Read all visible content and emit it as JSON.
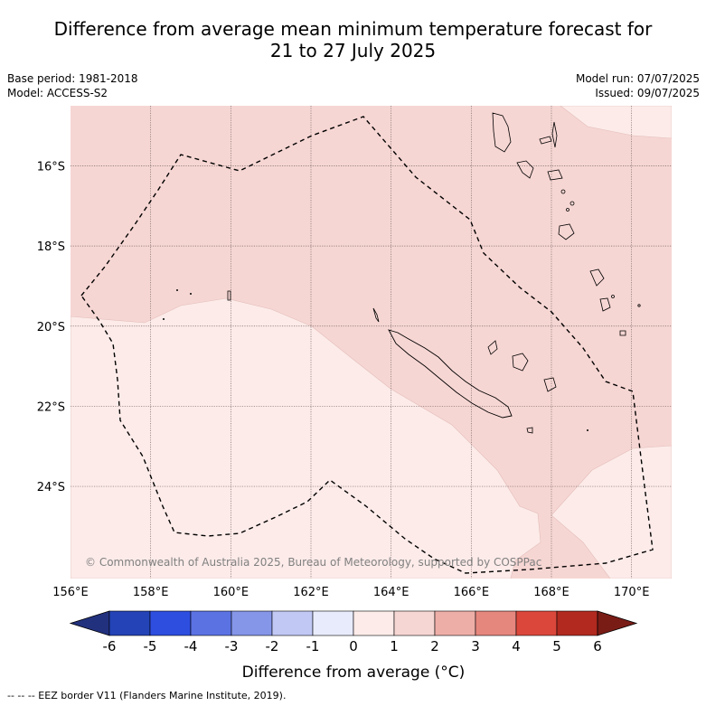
{
  "title_line1": "Difference from average mean minimum temperature forecast for",
  "title_line2": "21 to 27 July 2025",
  "meta": {
    "base_period": "Base period: 1981-2018",
    "model": "Model: ACCESS-S2",
    "model_run": "Model run: 07/07/2025",
    "issued": "Issued: 09/07/2025"
  },
  "map": {
    "extent": {
      "lon_min": 156,
      "lon_max": 171,
      "lat_min": -26.3,
      "lat_max": -14.5
    },
    "lat_ticks": [
      {
        "value": -16,
        "label": "16°S"
      },
      {
        "value": -18,
        "label": "18°S"
      },
      {
        "value": -20,
        "label": "20°S"
      },
      {
        "value": -22,
        "label": "22°S"
      },
      {
        "value": -24,
        "label": "24°S"
      }
    ],
    "lon_ticks": [
      {
        "value": 156,
        "label": "156°E"
      },
      {
        "value": 158,
        "label": "158°E"
      },
      {
        "value": 160,
        "label": "160°E"
      },
      {
        "value": 162,
        "label": "162°E"
      },
      {
        "value": 164,
        "label": "164°E"
      },
      {
        "value": 166,
        "label": "166°E"
      },
      {
        "value": 168,
        "label": "168°E"
      },
      {
        "value": 170,
        "label": "170°E"
      }
    ],
    "copyright": "© Commonwealth of Australia 2025, Bureau of Meteorology, supported by COSPPac",
    "fill_colors": {
      "zero_to_one": "#fcebe9",
      "one_to_two": "#f6d6d3"
    }
  },
  "colorbar": {
    "colors": [
      "#22317e",
      "#2343b6",
      "#2e4ee0",
      "#5b72e3",
      "#8595e8",
      "#c1c8f4",
      "#e8ebfb",
      "#fcebe9",
      "#f6d6d3",
      "#eeaea8",
      "#e6877e",
      "#dc473b",
      "#b1291f",
      "#7a1c16"
    ],
    "tick_labels": [
      "-6",
      "-5",
      "-4",
      "-3",
      "-2",
      "-1",
      "0",
      "1",
      "2",
      "3",
      "4",
      "5",
      "6"
    ],
    "label": "Difference from average (°C)"
  },
  "footnote": "-- -- -- EEZ border V11 (Flanders Marine Institute, 2019)."
}
